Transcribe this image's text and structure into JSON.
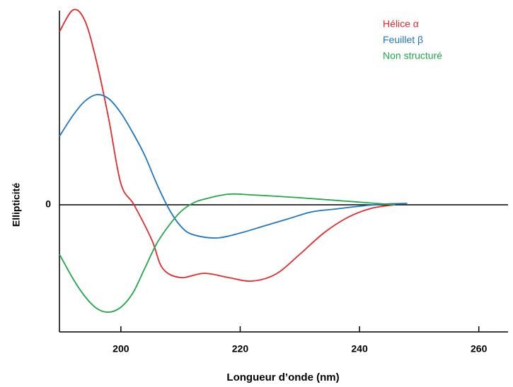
{
  "chart_data": {
    "type": "line",
    "x_label": "Longueur d’onde (nm)",
    "y_label": "Ellipticité",
    "xlim": [
      189.7,
      264.9
    ],
    "xticks": [
      200,
      220,
      240,
      260
    ],
    "ylim": [
      -1.8,
      2.8
    ],
    "yticks": [
      0
    ],
    "legend": "upper right",
    "series": [
      {
        "name": "Hélice α",
        "color": "#e8282b",
        "x": [
          189.7,
          192,
          194,
          196,
          198,
          200,
          202.2,
          205.2,
          207,
          210,
          214,
          218,
          222,
          226,
          230,
          234,
          238,
          242,
          246
        ],
        "values": [
          2.45,
          2.76,
          2.6,
          2.0,
          1.2,
          0.3,
          0,
          -0.5,
          -0.9,
          -1.03,
          -0.97,
          -1.03,
          -1.08,
          -0.98,
          -0.7,
          -0.4,
          -0.18,
          -0.05,
          0
        ]
      },
      {
        "name": "Feuillet β",
        "color": "#1f77c4",
        "x": [
          189.7,
          192,
          194,
          196,
          198,
          200,
          202,
          204,
          206,
          208,
          210,
          212,
          216,
          220,
          224,
          228,
          232,
          236,
          240,
          244,
          248
        ],
        "values": [
          0.97,
          1.27,
          1.47,
          1.56,
          1.5,
          1.3,
          1.02,
          0.7,
          0.3,
          -0.05,
          -0.3,
          -0.42,
          -0.47,
          -0.4,
          -0.3,
          -0.2,
          -0.1,
          -0.06,
          -0.02,
          0.01,
          0.02
        ]
      },
      {
        "name": "Non structuré",
        "color": "#22a84a",
        "x": [
          189.7,
          192,
          194,
          196,
          198,
          200,
          202,
          204,
          206,
          208,
          210,
          212,
          214,
          218,
          222,
          230,
          238,
          246
        ],
        "values": [
          -0.7,
          -1.05,
          -1.3,
          -1.47,
          -1.52,
          -1.45,
          -1.25,
          -0.9,
          -0.55,
          -0.3,
          -0.1,
          0.02,
          0.08,
          0.15,
          0.14,
          0.1,
          0.05,
          0
        ]
      }
    ]
  }
}
